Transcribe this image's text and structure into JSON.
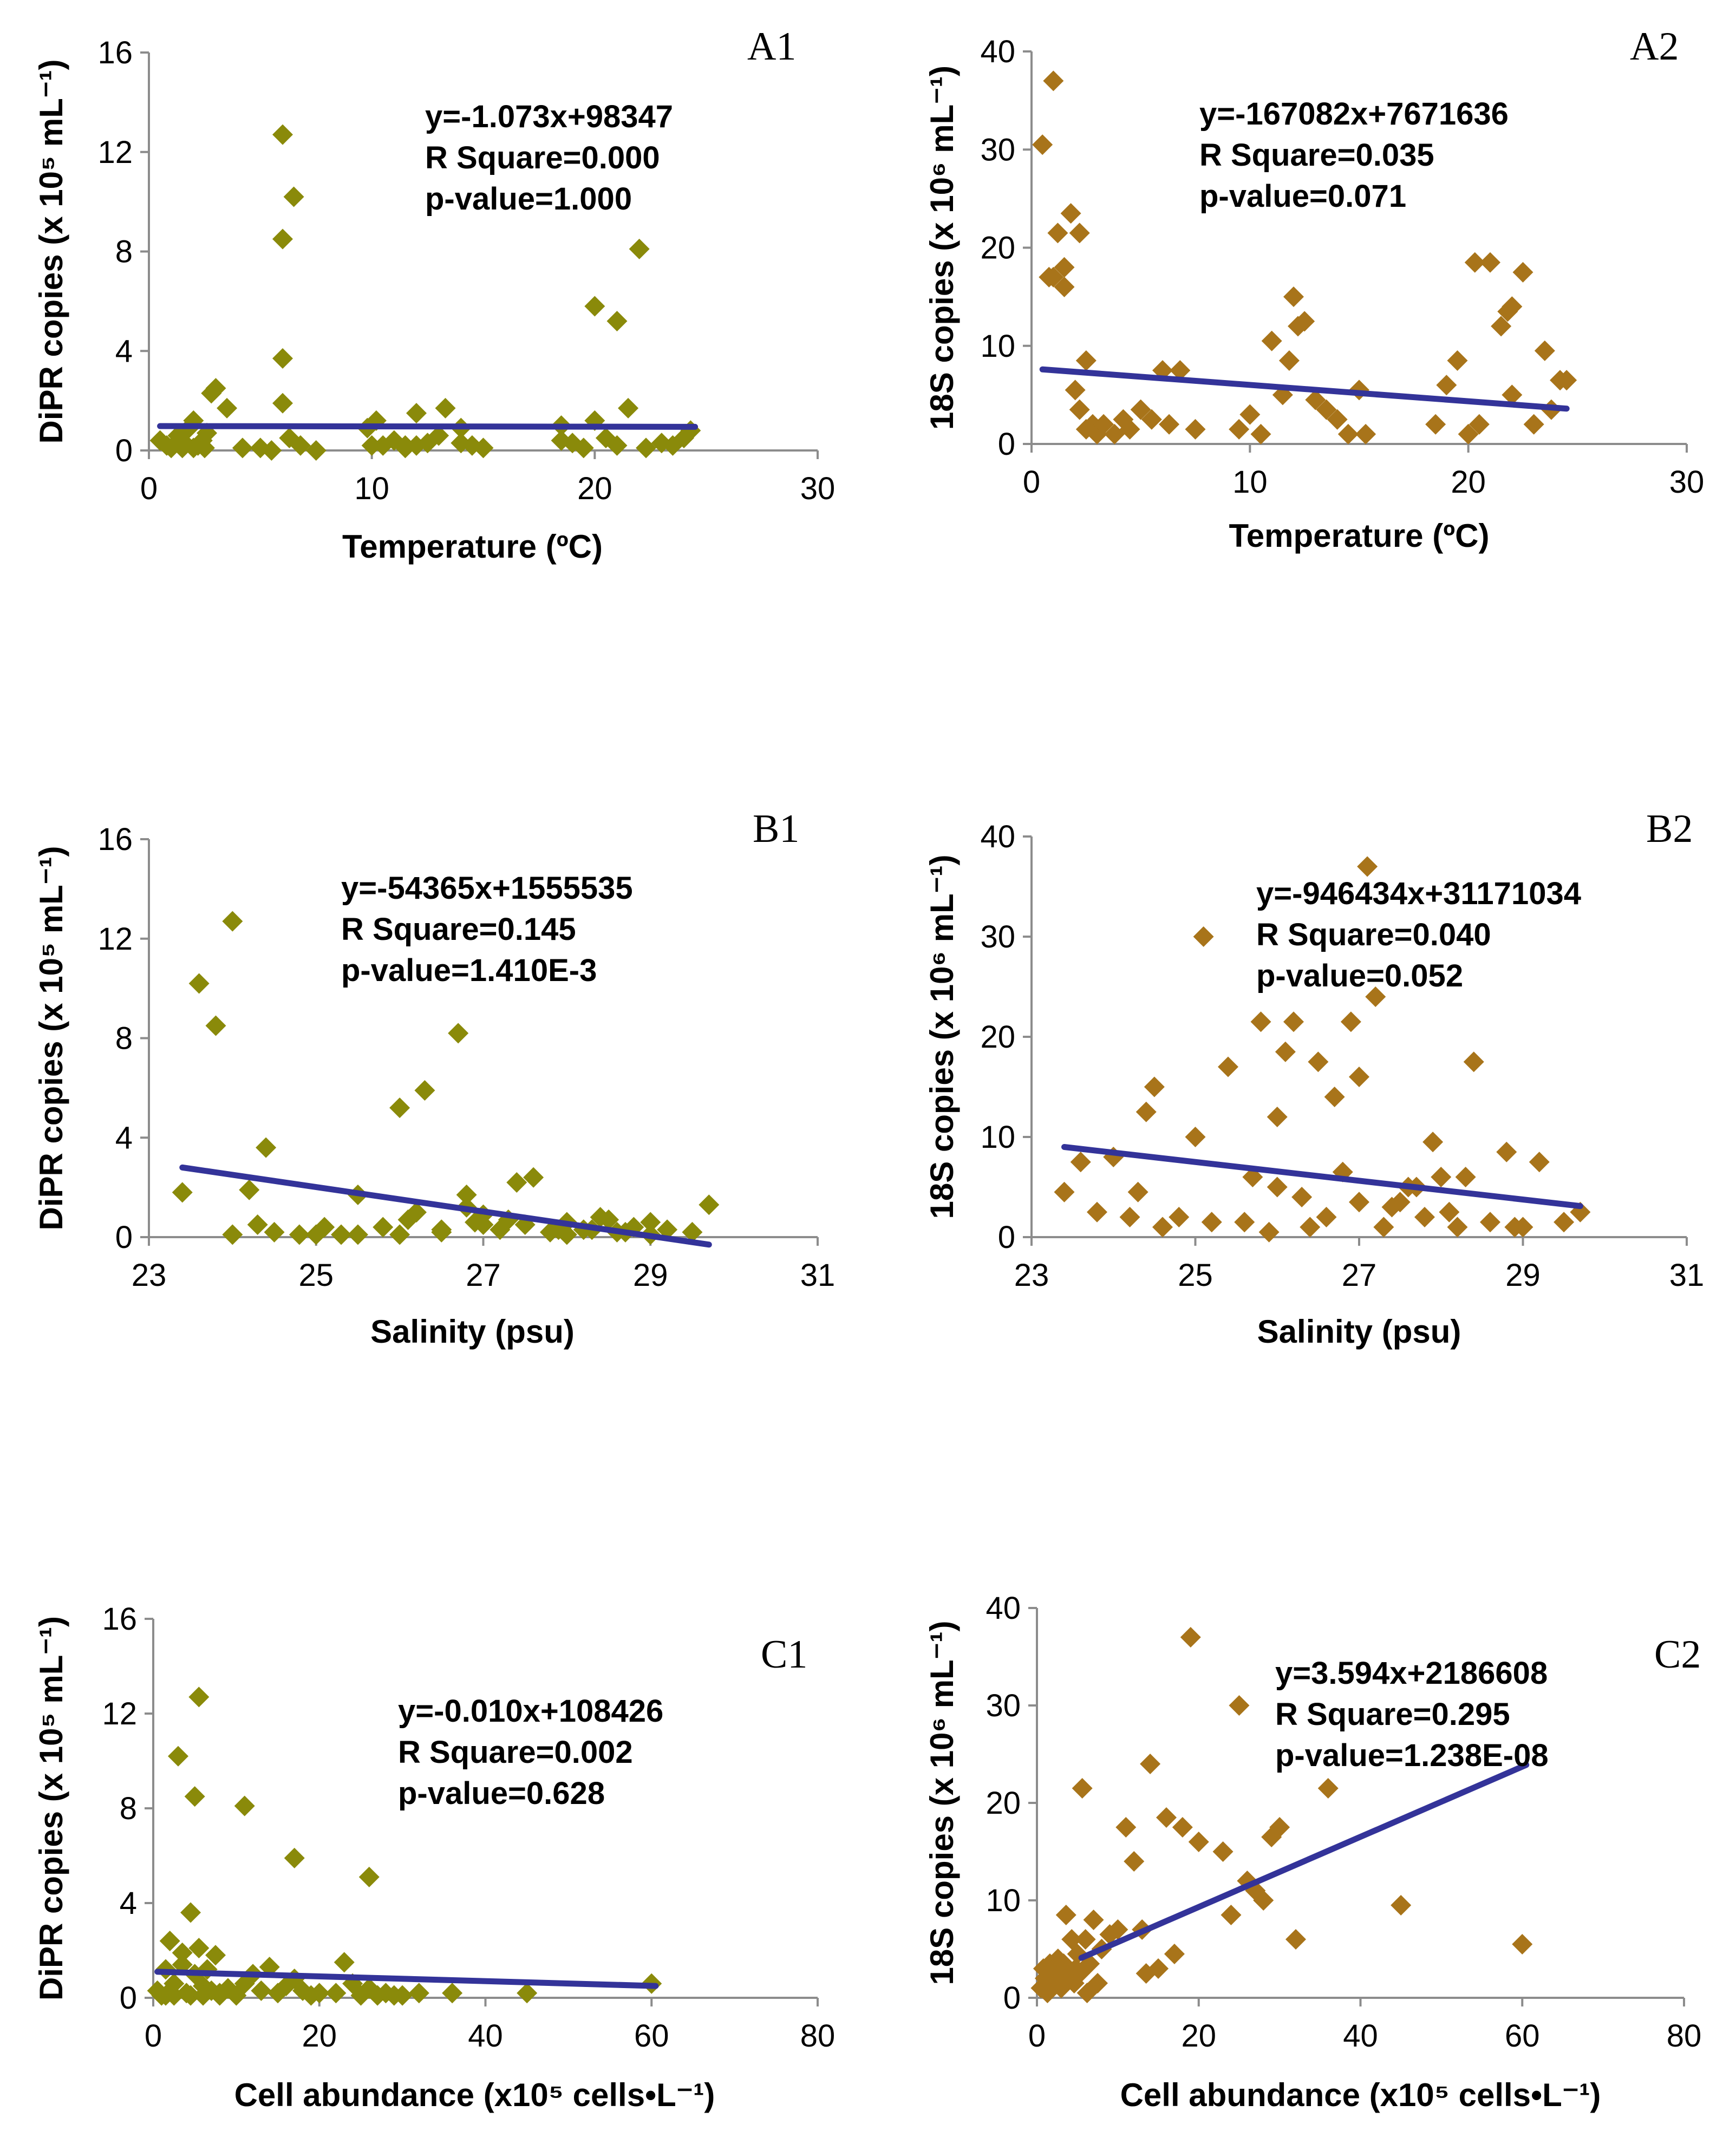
{
  "colors": {
    "olive": "#8a8a0a",
    "brown": "#a8741a",
    "trend": "#333399"
  },
  "chart_data": [
    {
      "type": "scatter",
      "panel": "A1",
      "xlabel": "Temperature (ºC)",
      "ylabel": "DiPR copies (x 10⁵ mL⁻¹)",
      "xlim": [
        0,
        30
      ],
      "ylim": [
        0,
        16
      ],
      "xticks": [
        0,
        10,
        20,
        30
      ],
      "yticks": [
        0,
        4,
        8,
        12,
        16
      ],
      "marker_color": "olive",
      "stats": [
        "y=-1.073x+98347",
        "R Square=0.000",
        "p-value=1.000"
      ],
      "trendline": {
        "x": [
          0.5,
          24.5
        ],
        "y": [
          0.98,
          0.95
        ]
      },
      "points": {
        "x": [
          0.5,
          0.8,
          1.0,
          1.3,
          1.6,
          1.8,
          2.0,
          2.2,
          2.4,
          2.6,
          2.8,
          3.0,
          1.5,
          2.0,
          2.5,
          3.5,
          4.2,
          5.0,
          5.5,
          6.0,
          6.0,
          6.3,
          6.8,
          7.5,
          9.8,
          10.2,
          10.5,
          11.0,
          11.5,
          12.0,
          12.5,
          13.0,
          13.3,
          14.0,
          14.5,
          15.0,
          18.5,
          19.0,
          19.5,
          20.0,
          20.5,
          21.0,
          21.5,
          22.0,
          22.3,
          23.0,
          23.5,
          24.0,
          24.3,
          6.0,
          6.0,
          6.5,
          10.0,
          11.5,
          12.0,
          14.0,
          18.5,
          20.0,
          21.0
        ],
        "y": [
          0.4,
          0.2,
          0.1,
          0.6,
          0.3,
          0.9,
          1.2,
          0.2,
          0.4,
          0.7,
          2.3,
          2.5,
          0.1,
          0.1,
          0.1,
          1.7,
          0.1,
          0.1,
          0.0,
          3.7,
          1.9,
          0.5,
          0.2,
          0.0,
          0.9,
          1.2,
          0.2,
          0.4,
          0.1,
          1.5,
          0.3,
          0.6,
          1.7,
          0.9,
          0.2,
          0.1,
          1.0,
          0.3,
          0.1,
          1.2,
          0.5,
          0.2,
          1.7,
          8.1,
          0.1,
          0.3,
          0.2,
          0.5,
          0.8,
          12.7,
          8.5,
          10.2,
          0.2,
          0.2,
          0.2,
          0.3,
          0.4,
          5.8,
          5.2
        ]
      }
    },
    {
      "type": "scatter",
      "panel": "A2",
      "xlabel": "Temperature (ºC)",
      "ylabel": "18S copies (x 10⁶ mL⁻¹)",
      "xlim": [
        0,
        30
      ],
      "ylim": [
        0,
        40
      ],
      "xticks": [
        0,
        10,
        20,
        30
      ],
      "yticks": [
        0,
        10,
        20,
        30,
        40
      ],
      "marker_color": "brown",
      "stats": [
        "y=-167082x+7671636",
        "R Square=0.035",
        "p-value=0.071"
      ],
      "trendline": {
        "x": [
          0.5,
          24.5
        ],
        "y": [
          7.6,
          3.6
        ]
      },
      "points": {
        "x": [
          0.5,
          1.0,
          0.8,
          1.2,
          1.5,
          1.8,
          2.2,
          1.5,
          1.0,
          2.0,
          2.5,
          2.8,
          3.0,
          2.2,
          2.5,
          3.3,
          3.8,
          4.2,
          4.5,
          5.0,
          5.5,
          6.0,
          6.3,
          6.8,
          7.5,
          9.5,
          10.0,
          10.5,
          11.0,
          11.5,
          12.0,
          12.5,
          13.0,
          13.5,
          14.0,
          14.5,
          15.0,
          15.3,
          18.5,
          19.0,
          19.5,
          20.0,
          20.5,
          21.0,
          21.5,
          22.0,
          22.5,
          23.0,
          23.5,
          23.8,
          24.2,
          24.5,
          20.3,
          21.8,
          22.0,
          11.8,
          12.2
        ],
        "y": [
          30.5,
          37.0,
          17.0,
          21.5,
          16.0,
          23.5,
          21.5,
          18.0,
          17.0,
          5.5,
          8.5,
          2.0,
          1.0,
          3.5,
          1.5,
          2.0,
          1.0,
          2.5,
          1.5,
          3.5,
          2.5,
          7.5,
          2.0,
          7.5,
          1.5,
          1.5,
          3.0,
          1.0,
          10.5,
          5.0,
          15.0,
          12.5,
          4.5,
          3.5,
          2.5,
          1.0,
          5.5,
          1.0,
          2.0,
          6.0,
          8.5,
          1.0,
          2.0,
          18.5,
          12.0,
          5.0,
          17.5,
          2.0,
          9.5,
          3.5,
          6.5,
          6.5,
          18.5,
          13.5,
          14.0,
          8.5,
          12.0
        ]
      }
    },
    {
      "type": "scatter",
      "panel": "B1",
      "xlabel": "Salinity (psu)",
      "ylabel": "DiPR copies (x 10⁵ mL⁻¹)",
      "xlim": [
        23,
        31
      ],
      "ylim": [
        0,
        16
      ],
      "xticks": [
        23,
        25,
        27,
        29,
        31
      ],
      "yticks": [
        0,
        4,
        8,
        12,
        16
      ],
      "marker_color": "olive",
      "stats": [
        "y=-54365x+1555535",
        "R Square=0.145",
        "p-value=1.410E-3"
      ],
      "trendline": {
        "x": [
          23.4,
          29.7
        ],
        "y": [
          2.8,
          -0.3
        ]
      },
      "points": {
        "x": [
          23.4,
          23.6,
          23.8,
          24.0,
          24.2,
          24.3,
          24.4,
          24.5,
          24.8,
          25.0,
          25.3,
          25.5,
          25.8,
          26.0,
          26.1,
          26.3,
          26.5,
          26.7,
          26.8,
          27.0,
          27.2,
          27.4,
          27.6,
          27.8,
          28.0,
          28.2,
          28.4,
          28.6,
          28.8,
          29.0,
          29.2,
          29.5,
          29.7,
          24.0,
          25.5,
          26.0,
          26.5,
          27.0,
          27.5,
          28.0,
          28.5,
          29.0,
          26.2,
          26.8,
          27.3,
          28.3,
          25.1,
          26.9,
          27.9,
          28.7
        ],
        "y": [
          1.8,
          10.2,
          8.5,
          12.7,
          1.9,
          0.5,
          3.6,
          0.2,
          0.1,
          0.1,
          0.1,
          1.7,
          0.4,
          5.2,
          0.7,
          5.9,
          0.2,
          8.2,
          1.7,
          0.5,
          0.3,
          2.2,
          2.4,
          0.2,
          0.6,
          0.3,
          0.8,
          0.2,
          0.4,
          0.6,
          0.3,
          0.2,
          1.3,
          0.1,
          0.1,
          0.1,
          0.3,
          0.9,
          0.5,
          0.1,
          0.7,
          0.1,
          1.0,
          1.2,
          0.7,
          0.3,
          0.4,
          0.6,
          0.3,
          0.2
        ]
      }
    },
    {
      "type": "scatter",
      "panel": "B2",
      "xlabel": "Salinity (psu)",
      "ylabel": "18S copies (x 10⁶ mL⁻¹)",
      "xlim": [
        23,
        31
      ],
      "ylim": [
        0,
        40
      ],
      "xticks": [
        23,
        25,
        27,
        29,
        31
      ],
      "yticks": [
        0,
        10,
        20,
        30,
        40
      ],
      "marker_color": "brown",
      "stats": [
        "y=-946434x+31171034",
        "R Square=0.040",
        "p-value=0.052"
      ],
      "trendline": {
        "x": [
          23.4,
          29.7
        ],
        "y": [
          9.0,
          3.1
        ]
      },
      "points": {
        "x": [
          23.4,
          23.6,
          23.8,
          24.0,
          24.2,
          24.4,
          24.5,
          24.8,
          25.0,
          25.1,
          25.2,
          25.4,
          25.6,
          25.8,
          25.9,
          26.0,
          26.1,
          26.2,
          26.3,
          26.5,
          26.6,
          26.8,
          26.9,
          27.0,
          27.1,
          27.2,
          27.3,
          27.5,
          27.7,
          27.8,
          27.9,
          28.0,
          28.2,
          28.4,
          28.6,
          28.8,
          29.0,
          29.2,
          29.5,
          29.7,
          24.3,
          24.6,
          25.7,
          26.4,
          27.6,
          28.3,
          28.9,
          26.7,
          27.4,
          28.1,
          26.0,
          27.0
        ],
        "y": [
          4.5,
          7.5,
          2.5,
          8.0,
          2.0,
          12.5,
          15.0,
          2.0,
          10.0,
          30.0,
          1.5,
          17.0,
          1.5,
          21.5,
          0.5,
          12.0,
          18.5,
          21.5,
          4.0,
          17.5,
          2.0,
          6.5,
          21.5,
          16.0,
          37.0,
          24.0,
          1.0,
          3.5,
          5.0,
          2.0,
          9.5,
          6.0,
          1.0,
          17.5,
          1.5,
          8.5,
          1.0,
          7.5,
          1.5,
          2.5,
          4.5,
          1.0,
          6.0,
          1.0,
          5.0,
          6.0,
          1.0,
          14.0,
          3.0,
          2.5,
          5.0,
          3.5
        ]
      }
    },
    {
      "type": "scatter",
      "panel": "C1",
      "xlabel": "Cell abundance (x10⁵ cells•L⁻¹)",
      "ylabel": "DiPR copies (x 10⁵ mL⁻¹)",
      "xlim": [
        0,
        80
      ],
      "ylim": [
        0,
        16
      ],
      "xticks": [
        0,
        20,
        40,
        60,
        80
      ],
      "yticks": [
        0,
        4,
        8,
        12,
        16
      ],
      "marker_color": "olive",
      "stats": [
        "y=-0.010x+108426",
        "R Square=0.002",
        "p-value=0.628"
      ],
      "trendline": {
        "x": [
          0.5,
          60.5
        ],
        "y": [
          1.1,
          0.5
        ]
      },
      "points": {
        "x": [
          0.5,
          1.0,
          1.5,
          2.0,
          2.5,
          3.0,
          3.5,
          4.0,
          4.5,
          5.0,
          5.5,
          6.0,
          6.5,
          7.0,
          7.5,
          8.0,
          9.0,
          10.0,
          11.0,
          12.0,
          13.0,
          14.0,
          15.0,
          16.0,
          17.0,
          18.0,
          19.0,
          20.0,
          22.0,
          23.0,
          24.0,
          25.0,
          26.0,
          27.0,
          28.0,
          29.0,
          30.0,
          32.0,
          36.0,
          45.0,
          60.0,
          3.5,
          5.0,
          5.5,
          11.0,
          17.0,
          26.0,
          1.5,
          2.5,
          4.5,
          6.0,
          8.0
        ],
        "y": [
          0.3,
          0.1,
          1.2,
          2.4,
          0.6,
          10.2,
          1.9,
          0.2,
          3.6,
          8.5,
          12.7,
          0.5,
          1.2,
          0.3,
          1.8,
          0.1,
          0.4,
          0.1,
          0.6,
          1.0,
          0.3,
          1.3,
          0.2,
          0.5,
          0.8,
          0.3,
          0.1,
          0.2,
          0.2,
          1.5,
          0.6,
          0.1,
          0.4,
          0.1,
          0.2,
          0.1,
          0.1,
          0.2,
          0.2,
          0.2,
          0.6,
          1.4,
          1.0,
          2.1,
          8.1,
          5.9,
          5.1,
          0.1,
          0.1,
          0.1,
          0.1,
          0.2
        ]
      }
    },
    {
      "type": "scatter",
      "panel": "C2",
      "xlabel": "Cell abundance (x10⁵ cells•L⁻¹)",
      "ylabel": "18S copies (x 10⁶ mL⁻¹)",
      "xlim": [
        0,
        80
      ],
      "ylim": [
        0,
        40
      ],
      "xticks": [
        0,
        20,
        40,
        60,
        80
      ],
      "yticks": [
        0,
        10,
        20,
        30,
        40
      ],
      "marker_color": "brown",
      "stats": [
        "y=3.594x+2186608",
        "R Square=0.295",
        "p-value=1.238E-08"
      ],
      "trendline": {
        "x": [
          5.5,
          60.5
        ],
        "y": [
          4.1,
          23.9
        ]
      },
      "points": {
        "x": [
          0.5,
          0.8,
          1.0,
          1.3,
          1.6,
          2.0,
          2.3,
          2.6,
          3.0,
          3.3,
          3.6,
          4.0,
          4.3,
          4.6,
          5.0,
          5.3,
          5.6,
          6.0,
          6.5,
          7.0,
          7.5,
          8.0,
          9.0,
          10.0,
          11.0,
          12.0,
          13.0,
          13.5,
          14.0,
          15.0,
          16.0,
          17.0,
          18.0,
          19.0,
          20.0,
          23.0,
          24.0,
          25.0,
          26.0,
          27.0,
          28.0,
          29.0,
          30.0,
          32.0,
          36.0,
          45.0,
          60.0,
          1.2,
          2.8,
          4.8,
          6.2
        ],
        "y": [
          1.0,
          3.0,
          2.0,
          0.5,
          3.5,
          1.5,
          2.5,
          4.0,
          1.0,
          3.5,
          8.5,
          2.0,
          6.0,
          1.5,
          4.5,
          2.5,
          21.5,
          6.0,
          3.5,
          8.0,
          1.5,
          5.0,
          6.5,
          7.0,
          17.5,
          14.0,
          7.0,
          2.5,
          24.0,
          3.0,
          18.5,
          4.5,
          17.5,
          37.0,
          16.0,
          15.0,
          8.5,
          30.0,
          12.0,
          11.0,
          10.0,
          16.5,
          17.5,
          6.0,
          21.5,
          9.5,
          5.5,
          1.5,
          2.0,
          3.0,
          0.5
        ]
      }
    }
  ]
}
